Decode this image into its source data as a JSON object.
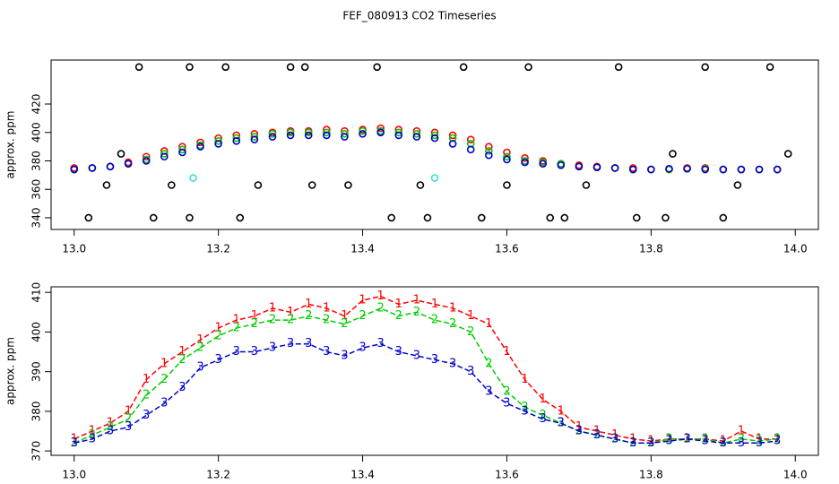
{
  "chart_data": [
    {
      "type": "scatter",
      "title": "FEF_080913  CO2 Timeseries",
      "y_label": "approx. ppm",
      "xlim": [
        12.968,
        14.032
      ],
      "xticks": [
        {
          "value": 13,
          "label": "13.0"
        },
        13.2,
        13.4,
        13.6,
        13.8,
        {
          "value": 14,
          "label": "14.0"
        }
      ],
      "ylim": [
        331.8,
        450.9
      ],
      "yticks": [
        340,
        360,
        380,
        400,
        420
      ],
      "series": [
        {
          "color": "#ff0000",
          "x": [
            13,
            13.025,
            13.05,
            13.075,
            13.1,
            13.125,
            13.15,
            13.175,
            13.2,
            13.225,
            13.25,
            13.275,
            13.3,
            13.325,
            13.35,
            13.375,
            13.4,
            13.425,
            13.45,
            13.475,
            13.5,
            13.525,
            13.55,
            13.575,
            13.6,
            13.625,
            13.65,
            13.675,
            13.7,
            13.725,
            13.75,
            13.775,
            13.8,
            13.825,
            13.85,
            13.875,
            13.9,
            13.925,
            13.95,
            13.975
          ],
          "values": [
            375,
            375,
            376,
            379,
            383,
            387,
            390,
            393,
            396,
            398,
            399,
            400,
            401,
            401,
            402,
            401,
            402,
            403,
            402,
            401,
            400,
            398,
            395,
            390,
            386,
            382,
            380,
            378,
            377,
            376,
            375,
            375,
            374,
            374,
            375,
            375,
            374,
            374,
            374,
            374
          ]
        },
        {
          "color": "#00cd00",
          "x": [
            13,
            13.025,
            13.05,
            13.075,
            13.1,
            13.125,
            13.15,
            13.175,
            13.2,
            13.225,
            13.25,
            13.275,
            13.3,
            13.325,
            13.35,
            13.375,
            13.4,
            13.425,
            13.45,
            13.475,
            13.5,
            13.525,
            13.55,
            13.575,
            13.6,
            13.625,
            13.65,
            13.675,
            13.7,
            13.725,
            13.75,
            13.775,
            13.8,
            13.825,
            13.85,
            13.875,
            13.9,
            13.925,
            13.95,
            13.975
          ],
          "values": [
            374,
            375,
            376,
            378,
            381,
            385,
            388,
            391,
            394,
            396,
            397,
            399,
            400,
            400,
            400,
            399,
            401,
            401,
            400,
            399,
            398,
            396,
            392,
            387,
            383,
            380,
            379,
            378,
            376,
            375.5,
            375,
            374,
            374,
            374,
            374.5,
            374.5,
            374,
            374,
            374,
            374
          ]
        },
        {
          "color": "#0000cd",
          "x": [
            13,
            13.025,
            13.05,
            13.075,
            13.1,
            13.125,
            13.15,
            13.175,
            13.2,
            13.225,
            13.25,
            13.275,
            13.3,
            13.325,
            13.35,
            13.375,
            13.4,
            13.425,
            13.45,
            13.475,
            13.5,
            13.525,
            13.55,
            13.575,
            13.6,
            13.625,
            13.65,
            13.675,
            13.7,
            13.725,
            13.75,
            13.775,
            13.8,
            13.825,
            13.85,
            13.875,
            13.9,
            13.925,
            13.95,
            13.975
          ],
          "values": [
            374,
            375,
            376,
            378,
            380,
            383,
            386,
            390,
            392,
            394,
            395,
            397,
            398,
            398,
            398,
            397,
            399,
            400,
            398,
            397,
            396,
            392,
            388,
            384,
            381,
            379,
            378,
            377,
            376,
            375.5,
            375,
            374,
            374,
            374.5,
            374.5,
            374,
            374,
            374,
            374,
            374
          ]
        },
        {
          "color": "#000000",
          "x": [
            13.02,
            13.045,
            13.065,
            13.09,
            13.11,
            13.135,
            13.16,
            13.16,
            13.21,
            13.23,
            13.255,
            13.3,
            13.32,
            13.33,
            13.38,
            13.42,
            13.44,
            13.48,
            13.49,
            13.54,
            13.565,
            13.6,
            13.63,
            13.66,
            13.68,
            13.71,
            13.755,
            13.78,
            13.82,
            13.83,
            13.875,
            13.9,
            13.92,
            13.965,
            13.99
          ],
          "values": [
            340,
            363,
            385,
            446,
            340,
            363,
            446,
            340,
            446,
            340,
            363,
            446,
            446,
            363,
            363,
            446,
            340,
            363,
            340,
            446,
            340,
            363,
            446,
            340,
            340,
            363,
            446,
            340,
            340,
            385,
            446,
            340,
            363,
            446,
            385
          ]
        },
        {
          "color": "#40e0d0",
          "x": [
            13.165,
            13.5
          ],
          "values": [
            368,
            368
          ]
        }
      ]
    },
    {
      "type": "line",
      "y_label": "approx. ppm",
      "xlim": [
        12.968,
        14.032
      ],
      "xticks": [
        {
          "value": 13,
          "label": "13.0"
        },
        13.2,
        13.4,
        13.6,
        13.8,
        {
          "value": 14,
          "label": "14.0"
        }
      ],
      "ylim": [
        368.9,
        411.4
      ],
      "yticks": [
        370,
        380,
        390,
        400,
        410
      ],
      "series": [
        {
          "name": "1",
          "color": "#ff0000",
          "x": [
            13,
            13.025,
            13.05,
            13.075,
            13.1,
            13.125,
            13.15,
            13.175,
            13.2,
            13.225,
            13.25,
            13.275,
            13.3,
            13.325,
            13.35,
            13.375,
            13.4,
            13.425,
            13.45,
            13.475,
            13.5,
            13.525,
            13.55,
            13.575,
            13.6,
            13.625,
            13.65,
            13.675,
            13.7,
            13.725,
            13.75,
            13.775,
            13.8,
            13.825,
            13.85,
            13.875,
            13.9,
            13.925,
            13.95,
            13.975
          ],
          "values": [
            373,
            375,
            377,
            380,
            388,
            392,
            395,
            398,
            401,
            403,
            404,
            406,
            405,
            407,
            406,
            404,
            408,
            409,
            407,
            408,
            407,
            406,
            404,
            402,
            395,
            388,
            383,
            380,
            376,
            375,
            374,
            373,
            372.5,
            373,
            373,
            373,
            372.5,
            375,
            373,
            373
          ]
        },
        {
          "name": "2",
          "color": "#00cd00",
          "x": [
            13,
            13.025,
            13.05,
            13.075,
            13.1,
            13.125,
            13.15,
            13.175,
            13.2,
            13.225,
            13.25,
            13.275,
            13.3,
            13.325,
            13.35,
            13.375,
            13.4,
            13.425,
            13.45,
            13.475,
            13.5,
            13.525,
            13.55,
            13.575,
            13.6,
            13.625,
            13.65,
            13.675,
            13.7,
            13.725,
            13.75,
            13.775,
            13.8,
            13.825,
            13.85,
            13.875,
            13.9,
            13.925,
            13.95,
            13.975
          ],
          "values": [
            372,
            374,
            376,
            378,
            384,
            388,
            393,
            396,
            399,
            401,
            402,
            403,
            403,
            404,
            403,
            402,
            404,
            406,
            404,
            405,
            403,
            402,
            400,
            392,
            385,
            381,
            379,
            377,
            375,
            374,
            373,
            372,
            372,
            373,
            373,
            373,
            372,
            373,
            372.5,
            373
          ]
        },
        {
          "name": "3",
          "color": "#0000cd",
          "x": [
            13,
            13.025,
            13.05,
            13.075,
            13.1,
            13.125,
            13.15,
            13.175,
            13.2,
            13.225,
            13.25,
            13.275,
            13.3,
            13.325,
            13.35,
            13.375,
            13.4,
            13.425,
            13.45,
            13.475,
            13.5,
            13.525,
            13.55,
            13.575,
            13.6,
            13.625,
            13.65,
            13.675,
            13.7,
            13.725,
            13.75,
            13.775,
            13.8,
            13.825,
            13.85,
            13.875,
            13.9,
            13.925,
            13.95,
            13.975
          ],
          "values": [
            372,
            373,
            375,
            376,
            379,
            382,
            386,
            391,
            393,
            395,
            395,
            396,
            397,
            397,
            395,
            394,
            396,
            397,
            395,
            394,
            393,
            392,
            390,
            385,
            382,
            380,
            378,
            377,
            375,
            374,
            373,
            372,
            372,
            372.5,
            373,
            372.5,
            372,
            372,
            372,
            372.5
          ]
        }
      ]
    }
  ]
}
